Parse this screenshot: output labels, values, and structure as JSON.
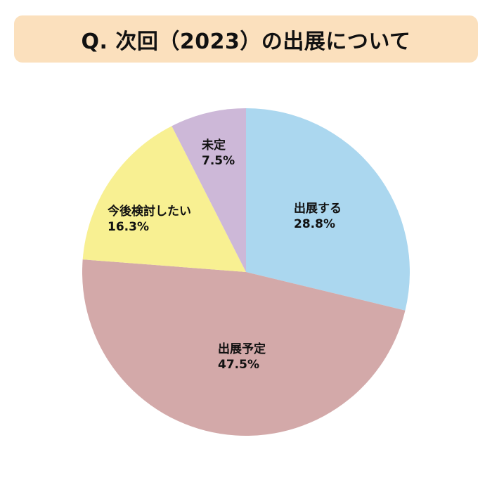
{
  "title": "Q. 次回（2023）の出展について",
  "chart_data": {
    "type": "pie",
    "title": "Q. 次回（2023）の出展について",
    "start": "12 o'clock",
    "direction": "clockwise",
    "slices": [
      {
        "label": "出展する",
        "value": 28.8,
        "value_label": "28.8%",
        "color": "#abd7ef"
      },
      {
        "label": "出展予定",
        "value": 47.5,
        "value_label": "47.5%",
        "color": "#d3a9a9"
      },
      {
        "label": "今後検討したい",
        "value": 16.3,
        "value_label": "16.3%",
        "color": "#f8f092"
      },
      {
        "label": "未定",
        "value": 7.5,
        "value_label": "7.5%",
        "color": "#cdb8d8"
      }
    ]
  }
}
